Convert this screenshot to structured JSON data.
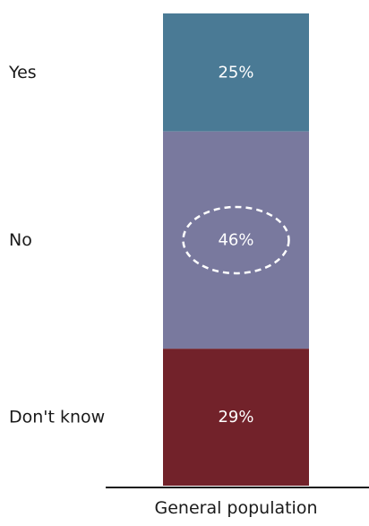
{
  "chart_data": {
    "type": "bar",
    "stacked": true,
    "normalized_percent": true,
    "categories": [
      "General population"
    ],
    "series": [
      {
        "name": "Yes",
        "values": [
          25
        ],
        "value_label": "25%",
        "color": "#4a7a95",
        "label_color": "#ffffff"
      },
      {
        "name": "No",
        "values": [
          46
        ],
        "value_label": "46%",
        "color": "#79799e",
        "label_color": "#ffffff"
      },
      {
        "name": "Don't know",
        "values": [
          29
        ],
        "value_label": "29%",
        "color": "#72222a",
        "label_color": "#ffffff"
      }
    ],
    "stack_order": "top-to-bottom",
    "legend_placement": "left",
    "highlighted_series": "No",
    "highlight_style": "dashed-ellipse",
    "highlight_color": "#ffffff",
    "title": "",
    "xlabel": "",
    "ylabel": "",
    "ylim": [
      0,
      100
    ],
    "grid": false
  }
}
